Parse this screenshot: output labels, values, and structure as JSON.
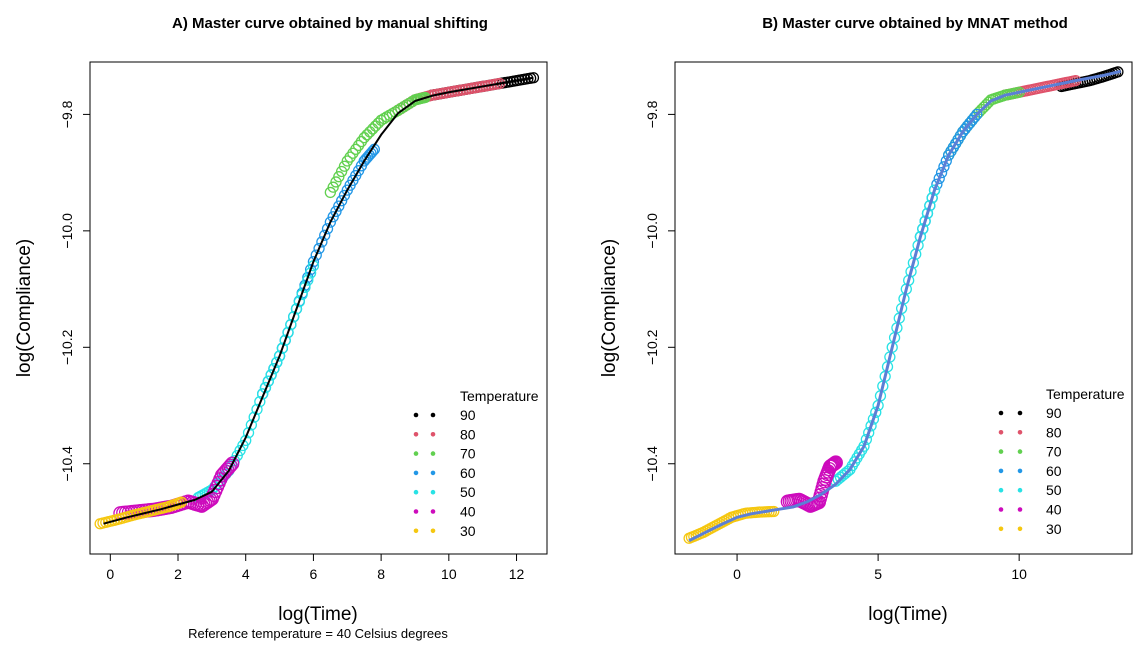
{
  "footnote": "Reference temperature = 40 Celsius degrees",
  "chart_data": [
    {
      "type": "scatter",
      "title": "A) Master curve obtained by manual shifting",
      "xlabel": "log(Time)",
      "ylabel": "log(Compliance)",
      "xlim": [
        -0.6,
        12.9
      ],
      "ylim": [
        -10.555,
        -9.71
      ],
      "xticks": [
        {
          "value": 0,
          "label": "0"
        },
        {
          "value": 2,
          "label": "2"
        },
        {
          "value": 4,
          "label": "4"
        },
        {
          "value": 6,
          "label": "6"
        },
        {
          "value": 8,
          "label": "8"
        },
        {
          "value": 10,
          "label": "10"
        },
        {
          "value": 12,
          "label": "12"
        }
      ],
      "yticks": [
        {
          "value": -10.4,
          "label": "−10.4"
        },
        {
          "value": -10.2,
          "label": "−10.2"
        },
        {
          "value": -10.0,
          "label": "−10.0"
        },
        {
          "value": -9.8,
          "label": "−9.8"
        }
      ],
      "marker": "open-circle",
      "fit_line": {
        "color": "#000000",
        "width": 2
      },
      "grid": false,
      "legend": {
        "title": "Temperature",
        "placement": "bottom-right"
      },
      "series": [
        {
          "name": "90",
          "color": "#000000",
          "x": [
            9.5,
            10.0,
            10.5,
            11.0,
            11.5,
            12.0,
            12.5
          ],
          "y": [
            -9.767,
            -9.762,
            -9.757,
            -9.752,
            -9.747,
            -9.742,
            -9.737
          ]
        },
        {
          "name": "80",
          "color": "#DF536B",
          "x": [
            8.5,
            9.0,
            9.5,
            10.0,
            10.5,
            11.0,
            11.5
          ],
          "y": [
            -9.793,
            -9.775,
            -9.767,
            -9.762,
            -9.757,
            -9.752,
            -9.747
          ]
        },
        {
          "name": "70",
          "color": "#61D04F",
          "x": [
            6.5,
            7.0,
            7.5,
            8.0,
            8.5,
            9.0,
            9.3
          ],
          "y": [
            -9.934,
            -9.88,
            -9.84,
            -9.81,
            -9.793,
            -9.775,
            -9.771
          ]
        },
        {
          "name": "60",
          "color": "#2297E6",
          "x": [
            4.5,
            5.0,
            5.5,
            6.0,
            6.5,
            7.0,
            7.5,
            7.8
          ],
          "y": [
            -10.28,
            -10.215,
            -10.134,
            -10.053,
            -9.985,
            -9.93,
            -9.88,
            -9.86
          ]
        },
        {
          "name": "50",
          "color": "#28E2E5",
          "x": [
            2.6,
            3.0,
            3.5,
            4.0,
            4.5,
            5.0,
            5.5,
            6.0
          ],
          "y": [
            -10.458,
            -10.445,
            -10.412,
            -10.36,
            -10.28,
            -10.215,
            -10.134,
            -10.06
          ]
        },
        {
          "name": "40",
          "color": "#CD0BBC",
          "x": [
            0.3,
            0.8,
            1.3,
            1.8,
            2.3,
            2.7,
            3.0,
            3.3,
            3.6
          ],
          "y": [
            -10.485,
            -10.482,
            -10.479,
            -10.474,
            -10.465,
            -10.472,
            -10.46,
            -10.42,
            -10.4
          ]
        },
        {
          "name": "30",
          "color": "#F5C710",
          "x": [
            -0.3,
            0.2,
            0.7,
            1.2,
            1.7,
            2.1
          ],
          "y": [
            -10.503,
            -10.496,
            -10.488,
            -10.481,
            -10.474,
            -10.466
          ]
        }
      ],
      "fit_curve": {
        "x": [
          -0.2,
          0.5,
          1.0,
          1.5,
          2.0,
          2.5,
          3.0,
          3.5,
          4.0,
          4.5,
          5.0,
          5.5,
          6.0,
          6.5,
          7.0,
          7.5,
          8.0,
          8.5,
          9.0,
          9.5,
          10.0,
          11.0,
          12.0,
          12.5
        ],
        "y": [
          -10.503,
          -10.492,
          -10.485,
          -10.478,
          -10.47,
          -10.462,
          -10.448,
          -10.412,
          -10.355,
          -10.285,
          -10.215,
          -10.134,
          -10.053,
          -9.985,
          -9.93,
          -9.88,
          -9.835,
          -9.798,
          -9.777,
          -9.768,
          -9.762,
          -9.752,
          -9.742,
          -9.737
        ]
      }
    },
    {
      "type": "scatter",
      "title": "B) Master curve obtained by MNAT method",
      "xlabel": "log(Time)",
      "ylabel": "log(Compliance)",
      "xlim": [
        -2.2,
        14.0
      ],
      "ylim": [
        -10.555,
        -9.71
      ],
      "xticks": [
        {
          "value": 0,
          "label": "0"
        },
        {
          "value": 5,
          "label": "5"
        },
        {
          "value": 10,
          "label": "10"
        }
      ],
      "yticks": [
        {
          "value": -10.4,
          "label": "−10.4"
        },
        {
          "value": -10.2,
          "label": "−10.2"
        },
        {
          "value": -10.0,
          "label": "−10.0"
        },
        {
          "value": -9.8,
          "label": "−9.8"
        }
      ],
      "marker": "open-circle",
      "fit_line": {
        "color": "#5B7FD6",
        "width": 3
      },
      "grid": false,
      "legend": {
        "title": "Temperature",
        "placement": "bottom-right"
      },
      "series": [
        {
          "name": "90",
          "color": "#000000",
          "x": [
            11.5,
            12.0,
            12.5,
            13.0,
            13.5
          ],
          "y": [
            -9.752,
            -9.747,
            -9.742,
            -9.735,
            -9.727
          ]
        },
        {
          "name": "80",
          "color": "#DF536B",
          "x": [
            9.5,
            10.0,
            10.5,
            11.0,
            11.5,
            12.0
          ],
          "y": [
            -9.767,
            -9.762,
            -9.757,
            -9.752,
            -9.747,
            -9.742
          ]
        },
        {
          "name": "70",
          "color": "#61D04F",
          "x": [
            7.5,
            8.0,
            8.5,
            9.0,
            9.5,
            10.0
          ],
          "y": [
            -9.87,
            -9.83,
            -9.8,
            -9.775,
            -9.767,
            -9.762
          ]
        },
        {
          "name": "60",
          "color": "#2297E6",
          "x": [
            6.5,
            7.0,
            7.5,
            8.0,
            8.5
          ],
          "y": [
            -10.01,
            -9.93,
            -9.87,
            -9.83,
            -9.8
          ]
        },
        {
          "name": "50",
          "color": "#28E2E5",
          "x": [
            3.5,
            4.0,
            4.5,
            5.0,
            5.5,
            6.0,
            6.5,
            7.0
          ],
          "y": [
            -10.43,
            -10.41,
            -10.37,
            -10.3,
            -10.2,
            -10.1,
            -10.01,
            -9.93
          ]
        },
        {
          "name": "40",
          "color": "#CD0BBC",
          "x": [
            1.8,
            2.2,
            2.6,
            2.9,
            3.1,
            3.3,
            3.5
          ],
          "y": [
            -10.465,
            -10.462,
            -10.472,
            -10.466,
            -10.43,
            -10.405,
            -10.398
          ]
        },
        {
          "name": "30",
          "color": "#F5C710",
          "x": [
            -1.7,
            -1.2,
            -0.7,
            -0.2,
            0.3,
            0.8,
            1.3
          ],
          "y": [
            -10.528,
            -10.518,
            -10.505,
            -10.492,
            -10.485,
            -10.483,
            -10.482
          ]
        }
      ],
      "fit_curve": {
        "x": [
          -1.7,
          -1.0,
          -0.5,
          0.0,
          0.5,
          1.0,
          1.5,
          2.0,
          2.5,
          3.0,
          3.5,
          4.0,
          4.5,
          5.0,
          5.5,
          6.0,
          6.5,
          7.0,
          7.5,
          8.0,
          8.5,
          9.0,
          9.5,
          10.0,
          11.0,
          12.0,
          13.0,
          13.6
        ],
        "y": [
          -10.532,
          -10.515,
          -10.503,
          -10.492,
          -10.486,
          -10.482,
          -10.478,
          -10.474,
          -10.465,
          -10.452,
          -10.435,
          -10.41,
          -10.37,
          -10.3,
          -10.2,
          -10.1,
          -10.01,
          -9.93,
          -9.87,
          -9.83,
          -9.8,
          -9.777,
          -9.767,
          -9.762,
          -9.752,
          -9.742,
          -9.733,
          -9.726
        ]
      }
    }
  ]
}
